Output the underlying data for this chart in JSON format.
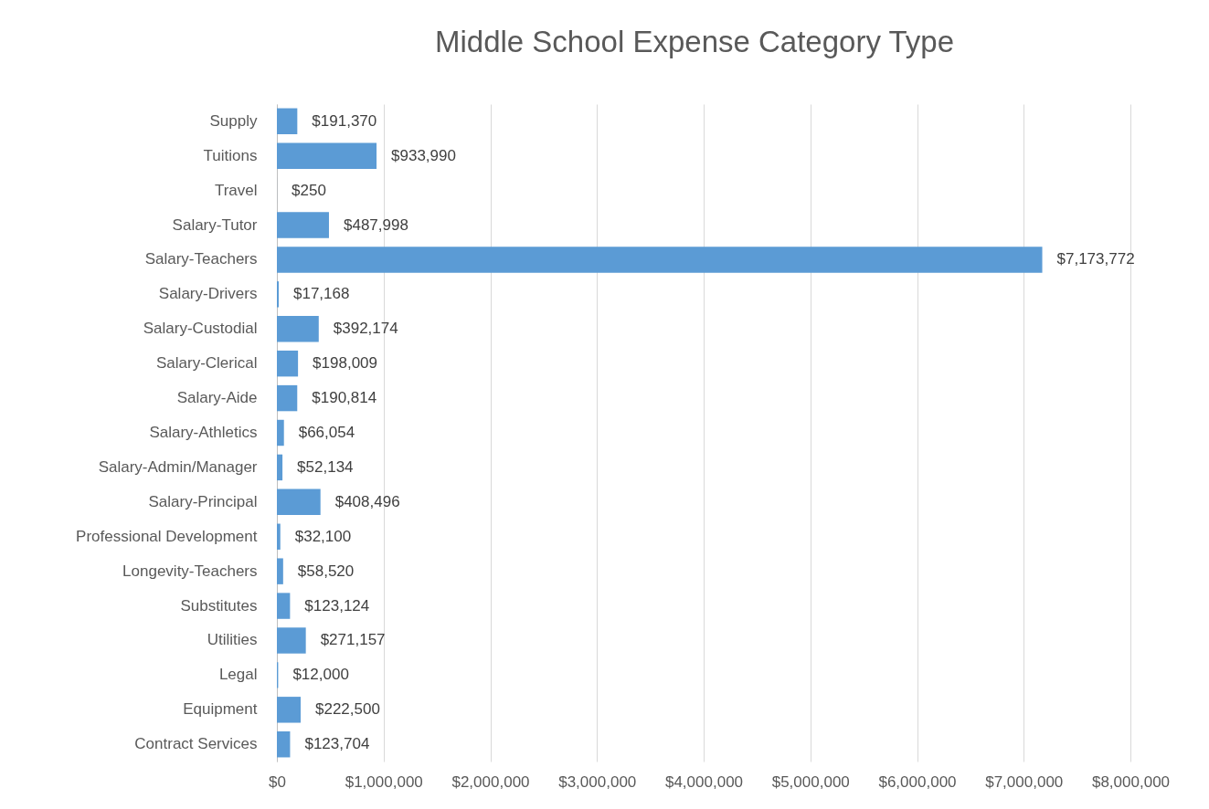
{
  "chart_data": {
    "type": "bar",
    "orientation": "horizontal",
    "title": "Middle School Expense Category Type",
    "categories": [
      "Supply",
      "Tuitions",
      "Travel",
      "Salary-Tutor",
      "Salary-Teachers",
      "Salary-Drivers",
      "Salary-Custodial",
      "Salary-Clerical",
      "Salary-Aide",
      "Salary-Athletics",
      "Salary-Admin/Manager",
      "Salary-Principal",
      "Professional Development",
      "Longevity-Teachers",
      "Substitutes",
      "Utilities",
      "Legal",
      "Equipment",
      "Contract Services"
    ],
    "values": [
      191370,
      933990,
      250,
      487998,
      7173772,
      17168,
      392174,
      198009,
      190814,
      66054,
      52134,
      408496,
      32100,
      58520,
      123124,
      271157,
      12000,
      222500,
      123704
    ],
    "value_labels": [
      "$191,370",
      "$933,990",
      "$250",
      "$487,998",
      "$7,173,772",
      "$17,168",
      "$392,174",
      "$198,009",
      "$190,814",
      "$66,054",
      "$52,134",
      "$408,496",
      "$32,100",
      "$58,520",
      "$123,124",
      "$271,157",
      "$12,000",
      "$222,500",
      "$123,704"
    ],
    "color": "#5b9bd5",
    "xlim": [
      0,
      8000000
    ],
    "xticks": [
      {
        "value": 0,
        "label": "$0"
      },
      {
        "value": 1000000,
        "label": "$1,000,000"
      },
      {
        "value": 2000000,
        "label": "$2,000,000"
      },
      {
        "value": 3000000,
        "label": "$3,000,000"
      },
      {
        "value": 4000000,
        "label": "$4,000,000"
      },
      {
        "value": 5000000,
        "label": "$5,000,000"
      },
      {
        "value": 6000000,
        "label": "$6,000,000"
      },
      {
        "value": 7000000,
        "label": "$7,000,000"
      },
      {
        "value": 8000000,
        "label": "$8,000,000"
      }
    ],
    "grid": "x"
  }
}
